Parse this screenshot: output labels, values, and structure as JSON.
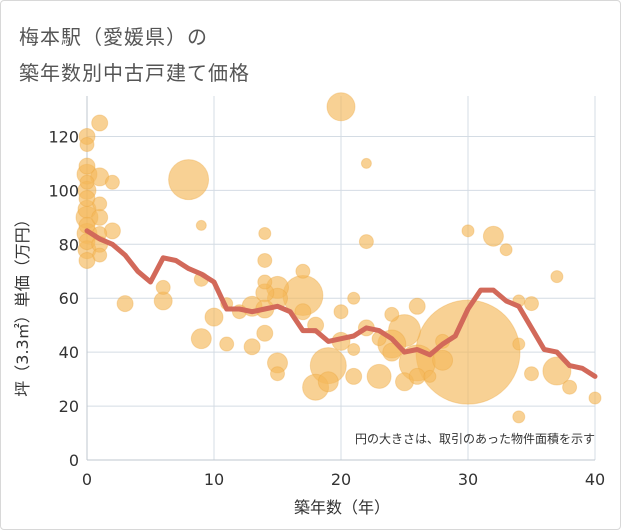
{
  "title_line1": "梅本駅（愛媛県）の",
  "title_line2": "築年数別中古戸建て価格",
  "chart_data": {
    "type": "scatter",
    "title": "梅本駅（愛媛県）の築年数別中古戸建て価格",
    "xlabel": "築年数（年）",
    "ylabel": "坪（3.3㎡）単価（万円）",
    "xlim": [
      0,
      40
    ],
    "ylim": [
      0,
      135
    ],
    "xticks": [
      "0",
      "10",
      "20",
      "30",
      "40"
    ],
    "yticks": [
      "0",
      "20",
      "40",
      "60",
      "80",
      "100",
      "120"
    ],
    "note": "円の大きさは、取引のあった物件面積を示す",
    "bubble_color": "#f5b85a",
    "line_color": "#d2695a",
    "points": [
      {
        "x": 0,
        "y": 120,
        "s": 8
      },
      {
        "x": 0,
        "y": 117,
        "s": 7
      },
      {
        "x": 0,
        "y": 109,
        "s": 8
      },
      {
        "x": 0,
        "y": 106,
        "s": 10
      },
      {
        "x": 0,
        "y": 103,
        "s": 7
      },
      {
        "x": 0,
        "y": 100,
        "s": 9
      },
      {
        "x": 0,
        "y": 97,
        "s": 8
      },
      {
        "x": 0,
        "y": 93,
        "s": 9
      },
      {
        "x": 0,
        "y": 90,
        "s": 11
      },
      {
        "x": 0,
        "y": 87,
        "s": 8
      },
      {
        "x": 0,
        "y": 84,
        "s": 10
      },
      {
        "x": 0,
        "y": 81,
        "s": 8
      },
      {
        "x": 0,
        "y": 78,
        "s": 9
      },
      {
        "x": 0,
        "y": 74,
        "s": 8
      },
      {
        "x": 1,
        "y": 125,
        "s": 8
      },
      {
        "x": 1,
        "y": 105,
        "s": 9
      },
      {
        "x": 1,
        "y": 95,
        "s": 7
      },
      {
        "x": 1,
        "y": 90,
        "s": 8
      },
      {
        "x": 1,
        "y": 84,
        "s": 7
      },
      {
        "x": 1,
        "y": 80,
        "s": 8
      },
      {
        "x": 1,
        "y": 76,
        "s": 7
      },
      {
        "x": 2,
        "y": 103,
        "s": 7
      },
      {
        "x": 2,
        "y": 85,
        "s": 8
      },
      {
        "x": 3,
        "y": 58,
        "s": 8
      },
      {
        "x": 6,
        "y": 64,
        "s": 7
      },
      {
        "x": 6,
        "y": 59,
        "s": 9
      },
      {
        "x": 8,
        "y": 104,
        "s": 20
      },
      {
        "x": 9,
        "y": 87,
        "s": 5
      },
      {
        "x": 9,
        "y": 67,
        "s": 7
      },
      {
        "x": 9,
        "y": 45,
        "s": 10
      },
      {
        "x": 10,
        "y": 53,
        "s": 9
      },
      {
        "x": 11,
        "y": 43,
        "s": 7
      },
      {
        "x": 11,
        "y": 58,
        "s": 6
      },
      {
        "x": 12,
        "y": 55,
        "s": 7
      },
      {
        "x": 13,
        "y": 57,
        "s": 10
      },
      {
        "x": 13,
        "y": 42,
        "s": 8
      },
      {
        "x": 14,
        "y": 84,
        "s": 6
      },
      {
        "x": 14,
        "y": 74,
        "s": 7
      },
      {
        "x": 14,
        "y": 66,
        "s": 7
      },
      {
        "x": 14,
        "y": 62,
        "s": 9
      },
      {
        "x": 14,
        "y": 56,
        "s": 9
      },
      {
        "x": 14,
        "y": 47,
        "s": 8
      },
      {
        "x": 15,
        "y": 64,
        "s": 11
      },
      {
        "x": 15,
        "y": 60,
        "s": 10
      },
      {
        "x": 15,
        "y": 36,
        "s": 10
      },
      {
        "x": 15,
        "y": 32,
        "s": 7
      },
      {
        "x": 17,
        "y": 70,
        "s": 7
      },
      {
        "x": 17,
        "y": 61,
        "s": 20
      },
      {
        "x": 17,
        "y": 55,
        "s": 8
      },
      {
        "x": 18,
        "y": 50,
        "s": 8
      },
      {
        "x": 18,
        "y": 27,
        "s": 13
      },
      {
        "x": 19,
        "y": 35,
        "s": 18
      },
      {
        "x": 19,
        "y": 29,
        "s": 10
      },
      {
        "x": 20,
        "y": 131,
        "s": 14
      },
      {
        "x": 20,
        "y": 55,
        "s": 7
      },
      {
        "x": 20,
        "y": 44,
        "s": 9
      },
      {
        "x": 21,
        "y": 60,
        "s": 6
      },
      {
        "x": 21,
        "y": 41,
        "s": 6
      },
      {
        "x": 21,
        "y": 31,
        "s": 8
      },
      {
        "x": 22,
        "y": 110,
        "s": 5
      },
      {
        "x": 22,
        "y": 81,
        "s": 7
      },
      {
        "x": 22,
        "y": 49,
        "s": 8
      },
      {
        "x": 23,
        "y": 45,
        "s": 7
      },
      {
        "x": 23,
        "y": 31,
        "s": 12
      },
      {
        "x": 24,
        "y": 54,
        "s": 7
      },
      {
        "x": 24,
        "y": 43,
        "s": 14
      },
      {
        "x": 24,
        "y": 40,
        "s": 9
      },
      {
        "x": 25,
        "y": 48,
        "s": 16
      },
      {
        "x": 25,
        "y": 29,
        "s": 9
      },
      {
        "x": 26,
        "y": 57,
        "s": 8
      },
      {
        "x": 26,
        "y": 36,
        "s": 18
      },
      {
        "x": 26,
        "y": 31,
        "s": 8
      },
      {
        "x": 27,
        "y": 31,
        "s": 6
      },
      {
        "x": 28,
        "y": 44,
        "s": 7
      },
      {
        "x": 28,
        "y": 37,
        "s": 10
      },
      {
        "x": 30,
        "y": 85,
        "s": 6
      },
      {
        "x": 30,
        "y": 40,
        "s": 52
      },
      {
        "x": 32,
        "y": 83,
        "s": 10
      },
      {
        "x": 33,
        "y": 78,
        "s": 6
      },
      {
        "x": 34,
        "y": 59,
        "s": 6
      },
      {
        "x": 34,
        "y": 43,
        "s": 6
      },
      {
        "x": 34,
        "y": 16,
        "s": 6
      },
      {
        "x": 35,
        "y": 58,
        "s": 7
      },
      {
        "x": 35,
        "y": 32,
        "s": 7
      },
      {
        "x": 37,
        "y": 68,
        "s": 6
      },
      {
        "x": 37,
        "y": 33,
        "s": 14
      },
      {
        "x": 38,
        "y": 27,
        "s": 7
      },
      {
        "x": 40,
        "y": 23,
        "s": 6
      }
    ],
    "trend": {
      "x": [
        0,
        1,
        2,
        3,
        4,
        5,
        6,
        7,
        8,
        9,
        10,
        11,
        12,
        13,
        14,
        15,
        16,
        17,
        18,
        19,
        20,
        21,
        22,
        23,
        24,
        25,
        26,
        27,
        28,
        29,
        30,
        31,
        32,
        33,
        34,
        35,
        36,
        37,
        38,
        39,
        40
      ],
      "y": [
        85,
        82,
        80,
        76,
        70,
        66,
        75,
        74,
        71,
        69,
        66,
        56,
        56,
        55,
        56,
        57,
        55,
        48,
        48,
        44,
        45,
        46,
        49,
        48,
        45,
        40,
        41,
        39,
        43,
        46,
        56,
        63,
        63,
        59,
        57,
        49,
        41,
        40,
        35,
        34,
        31
      ]
    }
  }
}
